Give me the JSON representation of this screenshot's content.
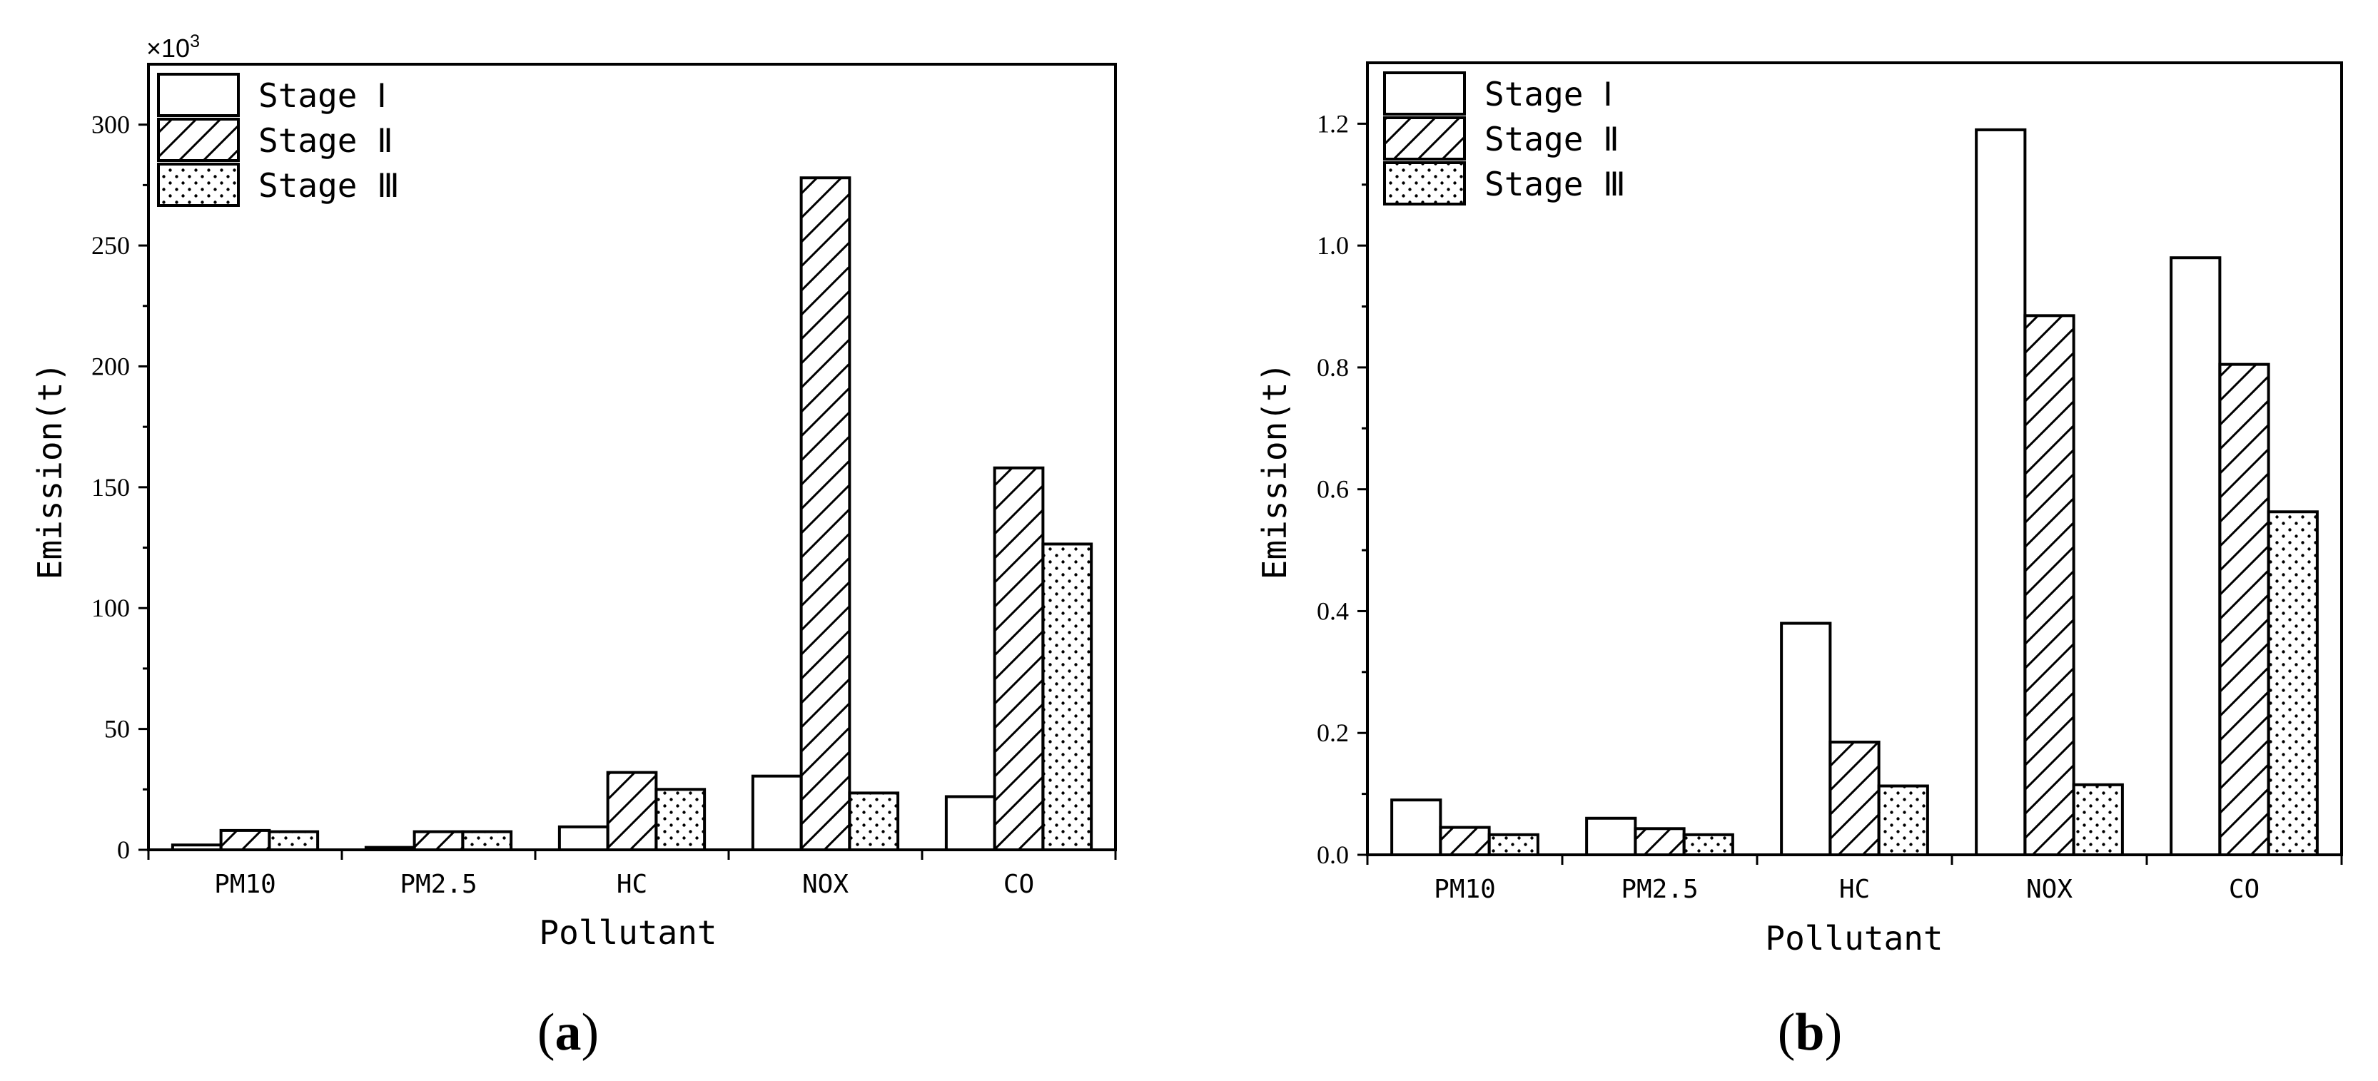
{
  "chart_data": [
    {
      "type": "bar",
      "panel_label": {
        "open": "(",
        "letter": "a",
        "close": ")"
      },
      "multiplier": {
        "prefix": "×10",
        "exponent": "3"
      },
      "categories": [
        "PM10",
        "PM2.5",
        "HC",
        "NOX",
        "CO"
      ],
      "series": [
        {
          "name": "Stage Ⅰ",
          "pattern": "none",
          "values": [
            2,
            1,
            9.5,
            30.5,
            22
          ]
        },
        {
          "name": "Stage Ⅱ",
          "pattern": "hatch",
          "values": [
            8,
            7.5,
            32,
            278,
            158
          ]
        },
        {
          "name": "Stage Ⅲ",
          "pattern": "dots",
          "values": [
            7.5,
            7.5,
            25,
            23.5,
            126.5
          ]
        }
      ],
      "xlabel": "Pollutant",
      "ylabel": "Emission(t)",
      "ylim": [
        0,
        325
      ],
      "yticks": [
        0,
        50,
        100,
        150,
        200,
        250,
        300
      ],
      "ytick_labels": [
        "0",
        "50",
        "100",
        "150",
        "200",
        "250",
        "300"
      ],
      "grid": false,
      "legend_position": "top-left"
    },
    {
      "type": "bar",
      "panel_label": {
        "open": "(",
        "letter": "b",
        "close": ")"
      },
      "categories": [
        "PM10",
        "PM2.5",
        "HC",
        "NOX",
        "CO"
      ],
      "series": [
        {
          "name": "Stage Ⅰ",
          "pattern": "none",
          "values": [
            0.09,
            0.06,
            0.38,
            1.19,
            0.98
          ]
        },
        {
          "name": "Stage Ⅱ",
          "pattern": "hatch",
          "values": [
            0.045,
            0.043,
            0.185,
            0.885,
            0.805
          ]
        },
        {
          "name": "Stage Ⅲ",
          "pattern": "dots",
          "values": [
            0.033,
            0.033,
            0.113,
            0.115,
            0.563
          ]
        }
      ],
      "xlabel": "Pollutant",
      "ylabel": "Emission(t)",
      "ylim": [
        0,
        1.3
      ],
      "yticks": [
        0,
        0.2,
        0.4,
        0.6,
        0.8,
        1.0,
        1.2
      ],
      "ytick_labels": [
        "0.0",
        "0.2",
        "0.4",
        "0.6",
        "0.8",
        "1.0",
        "1.2"
      ],
      "grid": false,
      "legend_position": "top-left"
    }
  ]
}
